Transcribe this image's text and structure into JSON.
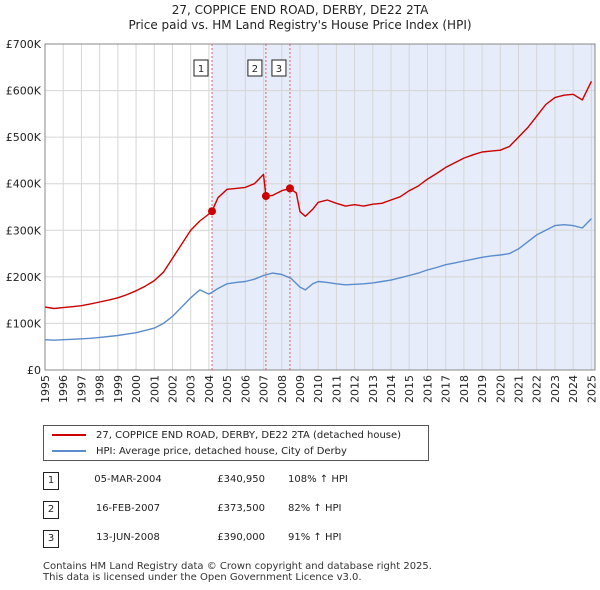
{
  "title_line1": "27, COPPICE END ROAD, DERBY, DE22 2TA",
  "title_line2": "Price paid vs. HM Land Registry's House Price Index (HPI)",
  "colors": {
    "property": "#cc0000",
    "hpi": "#5b8ccc",
    "shade": "#e6ecf9",
    "grid": "#d6d6d6",
    "marker_line": "#e06060"
  },
  "chart_data": {
    "type": "line",
    "title": "Price paid vs. HM Land Registry's House Price Index (HPI)",
    "xlim": [
      1995,
      2025.2
    ],
    "ylim": [
      0,
      700000
    ],
    "y_ticks": [
      {
        "value": 0,
        "label": "£0"
      },
      {
        "value": 100000,
        "label": "£100K"
      },
      {
        "value": 200000,
        "label": "£200K"
      },
      {
        "value": 300000,
        "label": "£300K"
      },
      {
        "value": 400000,
        "label": "£400K"
      },
      {
        "value": 500000,
        "label": "£500K"
      },
      {
        "value": 600000,
        "label": "£600K"
      },
      {
        "value": 700000,
        "label": "£700K"
      }
    ],
    "x_ticks": [
      "1995",
      "1996",
      "1997",
      "1998",
      "1999",
      "2000",
      "2001",
      "2002",
      "2003",
      "2004",
      "2005",
      "2006",
      "2007",
      "2008",
      "2009",
      "2010",
      "2011",
      "2012",
      "2013",
      "2014",
      "2015",
      "2016",
      "2017",
      "2018",
      "2019",
      "2020",
      "2021",
      "2022",
      "2023",
      "2024",
      "2025"
    ],
    "shaded_range": [
      2004.17,
      2025.2
    ],
    "series": [
      {
        "name": "27, COPPICE END ROAD, DERBY, DE22 2TA (detached house)",
        "x": [
          1995,
          1995.5,
          1996,
          1996.5,
          1997,
          1997.5,
          1998,
          1998.5,
          1999,
          1999.5,
          2000,
          2000.5,
          2001,
          2001.5,
          2002,
          2002.5,
          2003,
          2003.5,
          2004,
          2004.17,
          2004.5,
          2005,
          2005.5,
          2006,
          2006.5,
          2007,
          2007.13,
          2007.5,
          2008,
          2008.45,
          2008.8,
          2009,
          2009.3,
          2009.7,
          2010,
          2010.5,
          2011,
          2011.5,
          2012,
          2012.5,
          2013,
          2013.5,
          2014,
          2014.5,
          2015,
          2015.5,
          2016,
          2016.5,
          2017,
          2017.5,
          2018,
          2018.5,
          2019,
          2019.5,
          2020,
          2020.5,
          2021,
          2021.5,
          2022,
          2022.5,
          2023,
          2023.5,
          2024,
          2024.5,
          2025
        ],
        "values": [
          135000,
          132000,
          134000,
          136000,
          138000,
          142000,
          146000,
          150000,
          155000,
          162000,
          170000,
          180000,
          192000,
          210000,
          240000,
          270000,
          300000,
          320000,
          335000,
          340950,
          370000,
          388000,
          390000,
          392000,
          400000,
          420000,
          373500,
          375000,
          385000,
          390000,
          380000,
          340000,
          330000,
          345000,
          360000,
          365000,
          358000,
          352000,
          355000,
          352000,
          356000,
          358000,
          365000,
          372000,
          385000,
          395000,
          410000,
          422000,
          435000,
          445000,
          455000,
          462000,
          468000,
          470000,
          472000,
          480000,
          500000,
          520000,
          545000,
          570000,
          585000,
          590000,
          592000,
          580000,
          620000
        ]
      },
      {
        "name": "HPI: Average price, detached house, City of Derby",
        "x": [
          1995,
          1995.5,
          1996,
          1996.5,
          1997,
          1997.5,
          1998,
          1998.5,
          1999,
          1999.5,
          2000,
          2000.5,
          2001,
          2001.5,
          2002,
          2002.5,
          2003,
          2003.5,
          2004,
          2004.5,
          2005,
          2005.5,
          2006,
          2006.5,
          2007,
          2007.5,
          2008,
          2008.5,
          2009,
          2009.3,
          2009.7,
          2010,
          2010.5,
          2011,
          2011.5,
          2012,
          2012.5,
          2013,
          2013.5,
          2014,
          2014.5,
          2015,
          2015.5,
          2016,
          2016.5,
          2017,
          2017.5,
          2018,
          2018.5,
          2019,
          2019.5,
          2020,
          2020.5,
          2021,
          2021.5,
          2022,
          2022.5,
          2023,
          2023.5,
          2024,
          2024.5,
          2025
        ],
        "values": [
          65000,
          64000,
          65000,
          66000,
          67000,
          68000,
          70000,
          72000,
          74000,
          77000,
          80000,
          85000,
          90000,
          100000,
          115000,
          135000,
          155000,
          172000,
          163000,
          175000,
          185000,
          188000,
          190000,
          195000,
          203000,
          208000,
          205000,
          197000,
          178000,
          172000,
          185000,
          190000,
          188000,
          185000,
          183000,
          184000,
          185000,
          187000,
          190000,
          193000,
          198000,
          203000,
          208000,
          215000,
          220000,
          226000,
          230000,
          234000,
          238000,
          242000,
          245000,
          247000,
          250000,
          260000,
          275000,
          290000,
          300000,
          310000,
          312000,
          310000,
          305000,
          325000
        ]
      }
    ],
    "sales": [
      {
        "label": "1",
        "date": "05-MAR-2004",
        "x": 2004.17,
        "price": 340950,
        "price_text": "£340,950",
        "hpi_text": "108% ↑ HPI"
      },
      {
        "label": "2",
        "date": "16-FEB-2007",
        "x": 2007.13,
        "price": 373500,
        "price_text": "£373,500",
        "hpi_text": "82% ↑ HPI"
      },
      {
        "label": "3",
        "date": "13-JUN-2008",
        "x": 2008.45,
        "price": 390000,
        "price_text": "£390,000",
        "hpi_text": "91% ↑ HPI"
      }
    ]
  },
  "legend": {
    "property": "27, COPPICE END ROAD, DERBY, DE22 2TA (detached house)",
    "hpi": "HPI: Average price, detached house, City of Derby"
  },
  "table": [
    {
      "num": "1",
      "date": "05-MAR-2004",
      "price": "£340,950",
      "hpi": "108% ↑ HPI"
    },
    {
      "num": "2",
      "date": "16-FEB-2007",
      "price": "£373,500",
      "hpi": "82% ↑ HPI"
    },
    {
      "num": "3",
      "date": "13-JUN-2008",
      "price": "£390,000",
      "hpi": "91% ↑ HPI"
    }
  ],
  "footer_line1": "Contains HM Land Registry data © Crown copyright and database right 2025.",
  "footer_line2": "This data is licensed under the Open Government Licence v3.0."
}
